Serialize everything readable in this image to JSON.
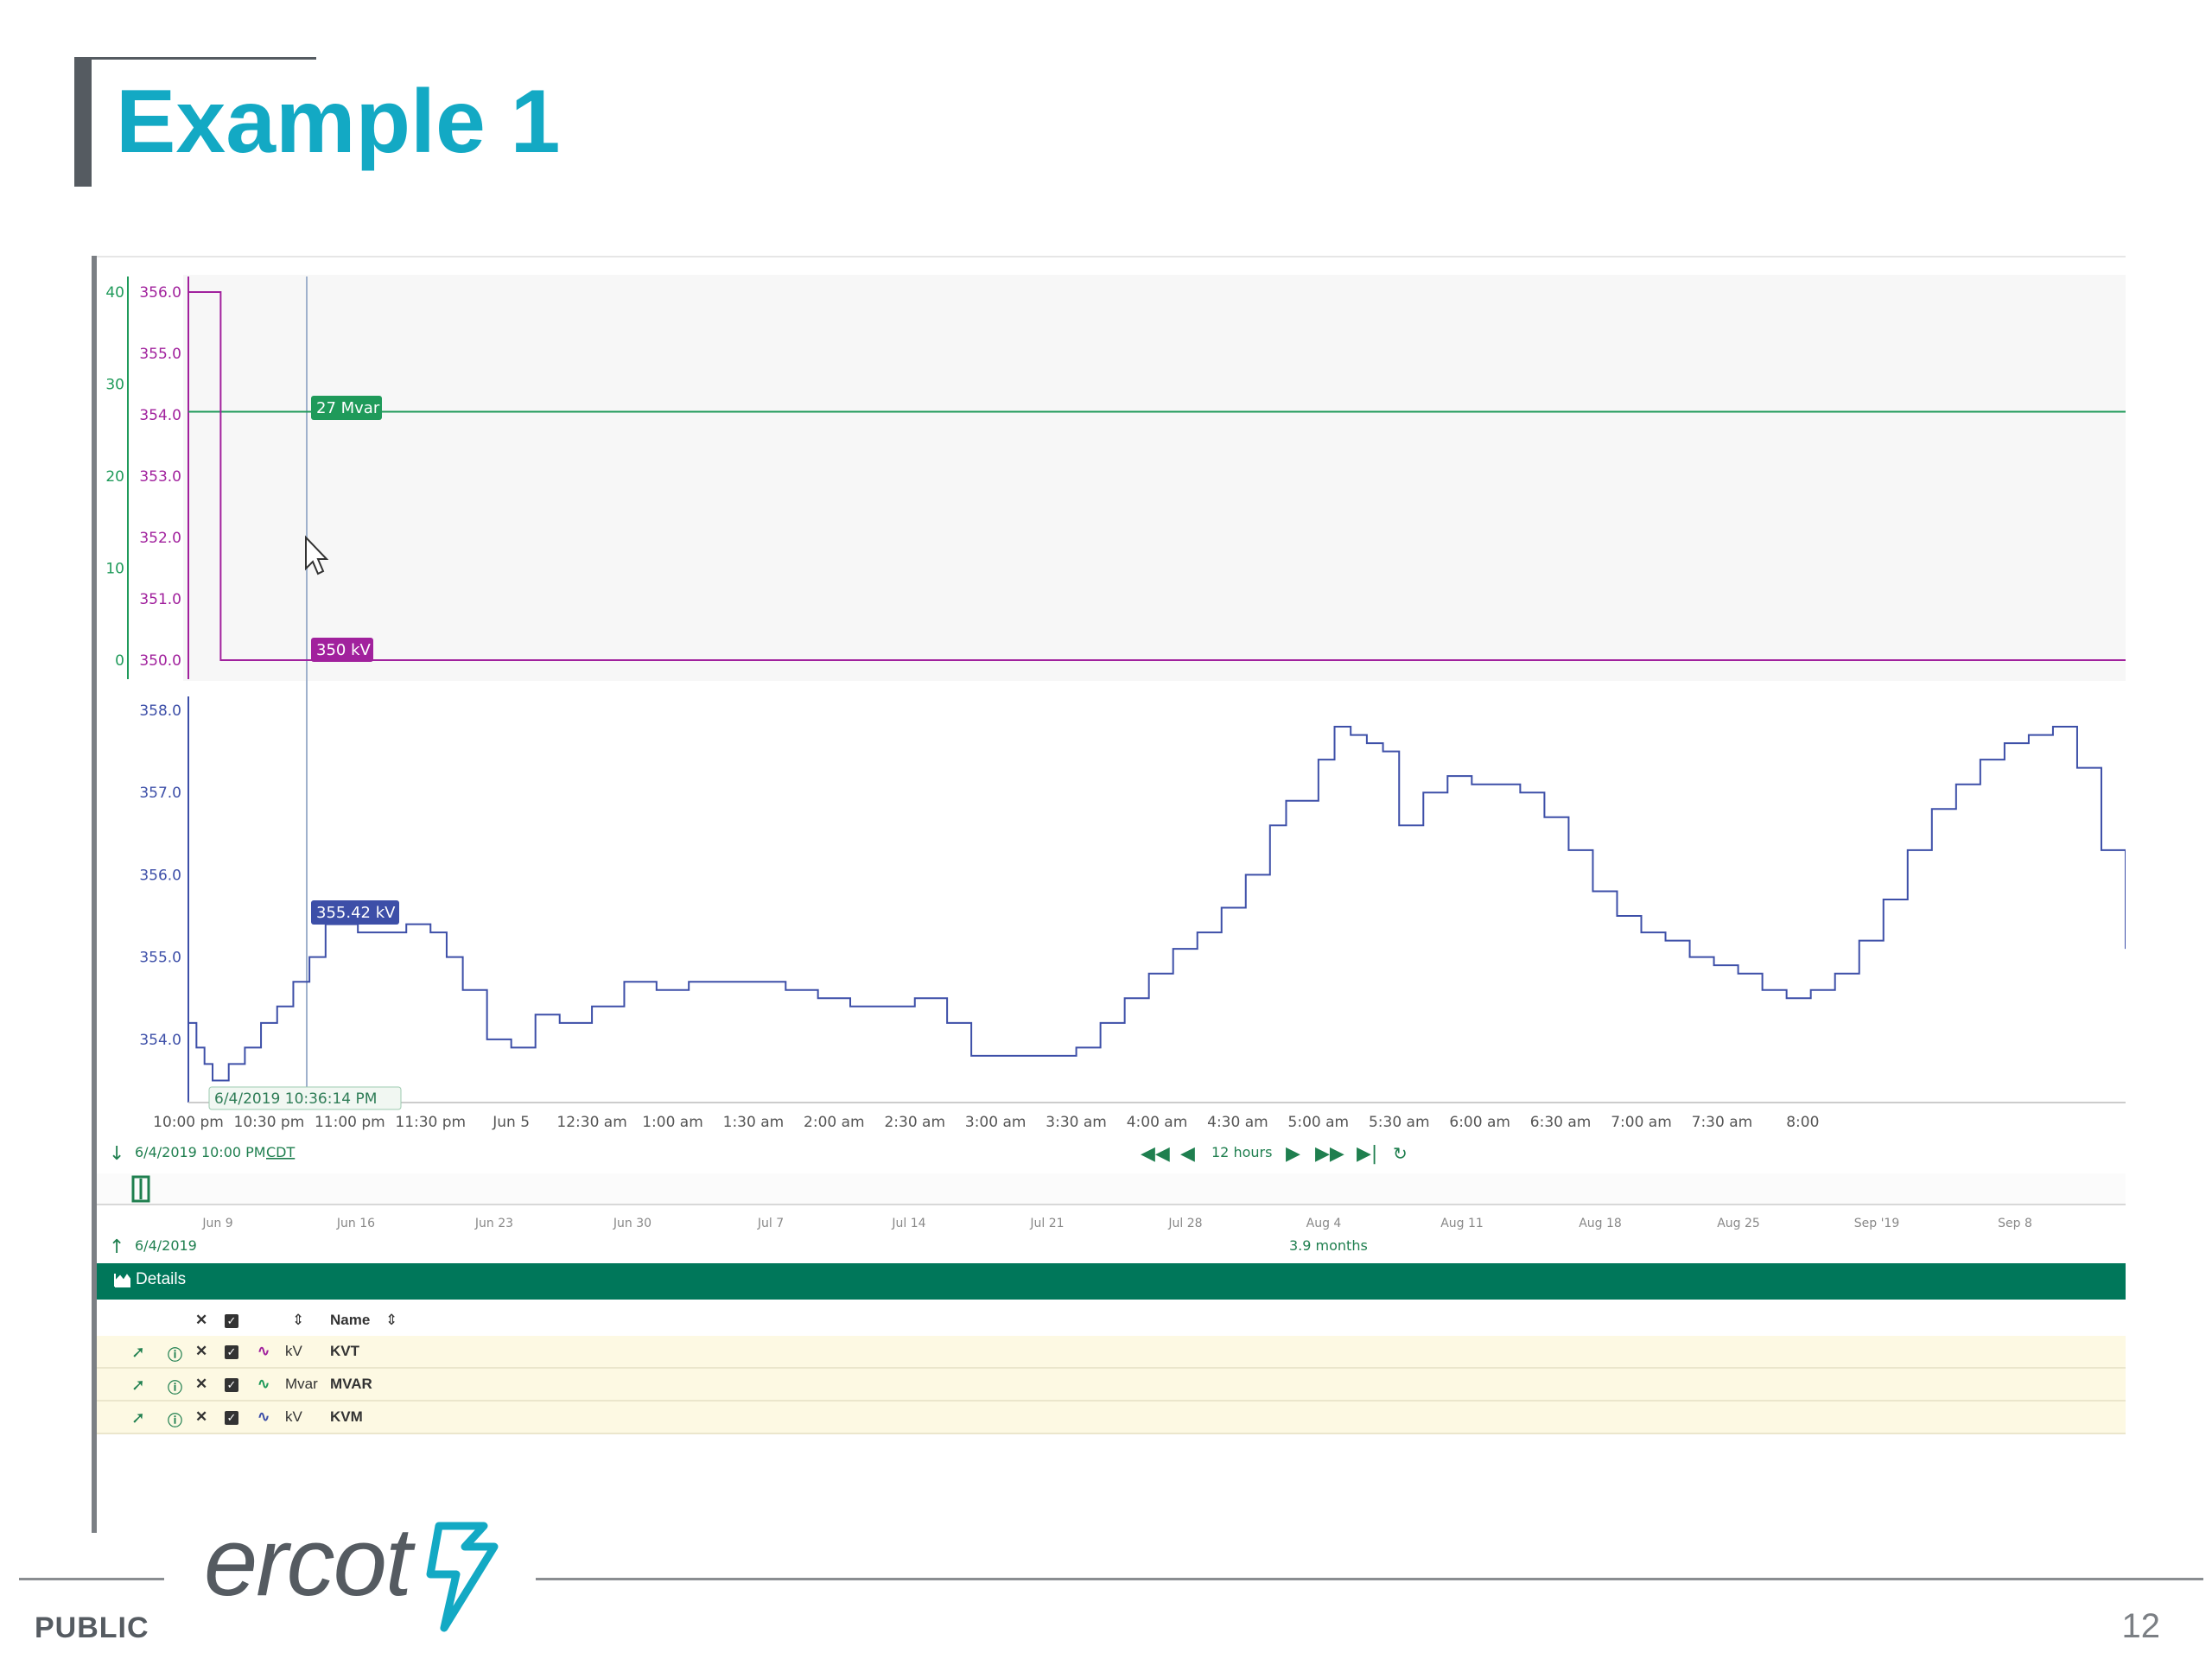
{
  "slide": {
    "title": "Example 1",
    "footer_label": "PUBLIC",
    "page_number": "12",
    "logo_text": "ercot"
  },
  "colors": {
    "title": "#13a9c4",
    "kvt": "#a1219d",
    "mvar": "#1f9a5a",
    "kvm": "#3d4fa8",
    "details_bar": "#00775a",
    "row_bg": "#fdf9e3"
  },
  "trend": {
    "top_panel": {
      "left_axis_ticks": [
        "40",
        "30",
        "20",
        "10",
        "0"
      ],
      "right_axis_ticks": [
        "356.0",
        "355.0",
        "354.0",
        "353.0",
        "352.0",
        "351.0",
        "350.0"
      ],
      "mvar_tag": "27 Mvar",
      "kv_tag": "350 kV"
    },
    "bottom_panel": {
      "axis_ticks": [
        "358.0",
        "357.0",
        "356.0",
        "355.0",
        "354.0"
      ],
      "kvm_tag": "355.42 kV",
      "cursor_time": "6/4/2019 10:36:14 PM"
    },
    "time_ticks": [
      "10:00 pm",
      "10:30 pm",
      "11:00 pm",
      "11:30 pm",
      "Jun 5",
      "12:30 am",
      "1:00 am",
      "1:30 am",
      "2:00 am",
      "2:30 am",
      "3:00 am",
      "3:30 am",
      "4:00 am",
      "4:30 am",
      "5:00 am",
      "5:30 am",
      "6:00 am",
      "6:30 am",
      "7:00 am",
      "7:30 am",
      "8:00"
    ],
    "nav": {
      "start_date": "6/4/2019 10:00 PM",
      "timezone": "CDT",
      "range": "12 hours"
    },
    "overview": {
      "ticks": [
        "Jun 9",
        "Jun 16",
        "Jun 23",
        "Jun 30",
        "Jul 7",
        "Jul 14",
        "Jul 21",
        "Jul 28",
        "Aug 4",
        "Aug 11",
        "Aug 18",
        "Aug 25",
        "Sep '19",
        "Sep 8"
      ],
      "start": "6/4/2019",
      "span": "3.9 months"
    },
    "details": {
      "label": "Details",
      "name_header": "Name",
      "rows": [
        {
          "unit": "kV",
          "name": "KVT",
          "color": "#a1219d"
        },
        {
          "unit": "Mvar",
          "name": "MVAR",
          "color": "#1f9a5a"
        },
        {
          "unit": "kV",
          "name": "KVM",
          "color": "#3d4fa8"
        }
      ]
    }
  },
  "chart_data": [
    {
      "type": "line",
      "series": [
        {
          "name": "KVT",
          "unit": "kV",
          "x_hours": [
            0.0,
            0.2,
            0.2,
            12.0
          ],
          "values": [
            356.0,
            356.0,
            350.0,
            350.0
          ]
        },
        {
          "name": "MVAR",
          "unit": "Mvar",
          "x_hours": [
            0.0,
            12.0
          ],
          "values": [
            27,
            27
          ]
        }
      ],
      "ylim_left": [
        0,
        40
      ],
      "ylim_right": [
        350,
        356
      ]
    },
    {
      "type": "line",
      "series": [
        {
          "name": "KVM",
          "unit": "kV",
          "x_hours": [
            0.0,
            0.05,
            0.1,
            0.15,
            0.25,
            0.35,
            0.45,
            0.55,
            0.65,
            0.75,
            0.85,
            0.95,
            1.05,
            1.15,
            1.35,
            1.5,
            1.6,
            1.7,
            1.85,
            2.0,
            2.15,
            2.3,
            2.5,
            2.7,
            2.9,
            3.1,
            3.3,
            3.5,
            3.7,
            3.9,
            4.1,
            4.3,
            4.5,
            4.7,
            4.85,
            5.0,
            5.15,
            5.35,
            5.5,
            5.65,
            5.8,
            5.95,
            6.1,
            6.25,
            6.4,
            6.55,
            6.7,
            6.8,
            6.9,
            7.0,
            7.1,
            7.2,
            7.3,
            7.4,
            7.5,
            7.65,
            7.8,
            7.95,
            8.1,
            8.25,
            8.4,
            8.55,
            8.7,
            8.85,
            9.0,
            9.15,
            9.3,
            9.45,
            9.6,
            9.75,
            9.9,
            10.05,
            10.2,
            10.35,
            10.5,
            10.65,
            10.8,
            10.95,
            11.1,
            11.25,
            11.4,
            11.55,
            11.7,
            11.85,
            12.0
          ],
          "values": [
            354.2,
            353.9,
            353.7,
            353.5,
            353.7,
            353.9,
            354.2,
            354.4,
            354.7,
            355.0,
            355.4,
            355.4,
            355.3,
            355.3,
            355.4,
            355.3,
            355.0,
            354.6,
            354.0,
            353.9,
            354.3,
            354.2,
            354.4,
            354.7,
            354.6,
            354.7,
            354.7,
            354.7,
            354.6,
            354.5,
            354.4,
            354.4,
            354.5,
            354.2,
            353.8,
            353.8,
            353.8,
            353.8,
            353.9,
            354.2,
            354.5,
            354.8,
            355.1,
            355.3,
            355.6,
            356.0,
            356.6,
            356.9,
            356.9,
            357.4,
            357.8,
            357.7,
            357.6,
            357.5,
            356.6,
            357.0,
            357.2,
            357.1,
            357.1,
            357.0,
            356.7,
            356.3,
            355.8,
            355.5,
            355.3,
            355.2,
            355.0,
            354.9,
            354.8,
            354.6,
            354.5,
            354.6,
            354.8,
            355.2,
            355.7,
            356.3,
            356.8,
            357.1,
            357.4,
            357.6,
            357.7,
            357.8,
            357.3,
            356.3,
            355.1
          ],
          "ylim": [
            353.4,
            358.0
          ]
        }
      ]
    }
  ]
}
